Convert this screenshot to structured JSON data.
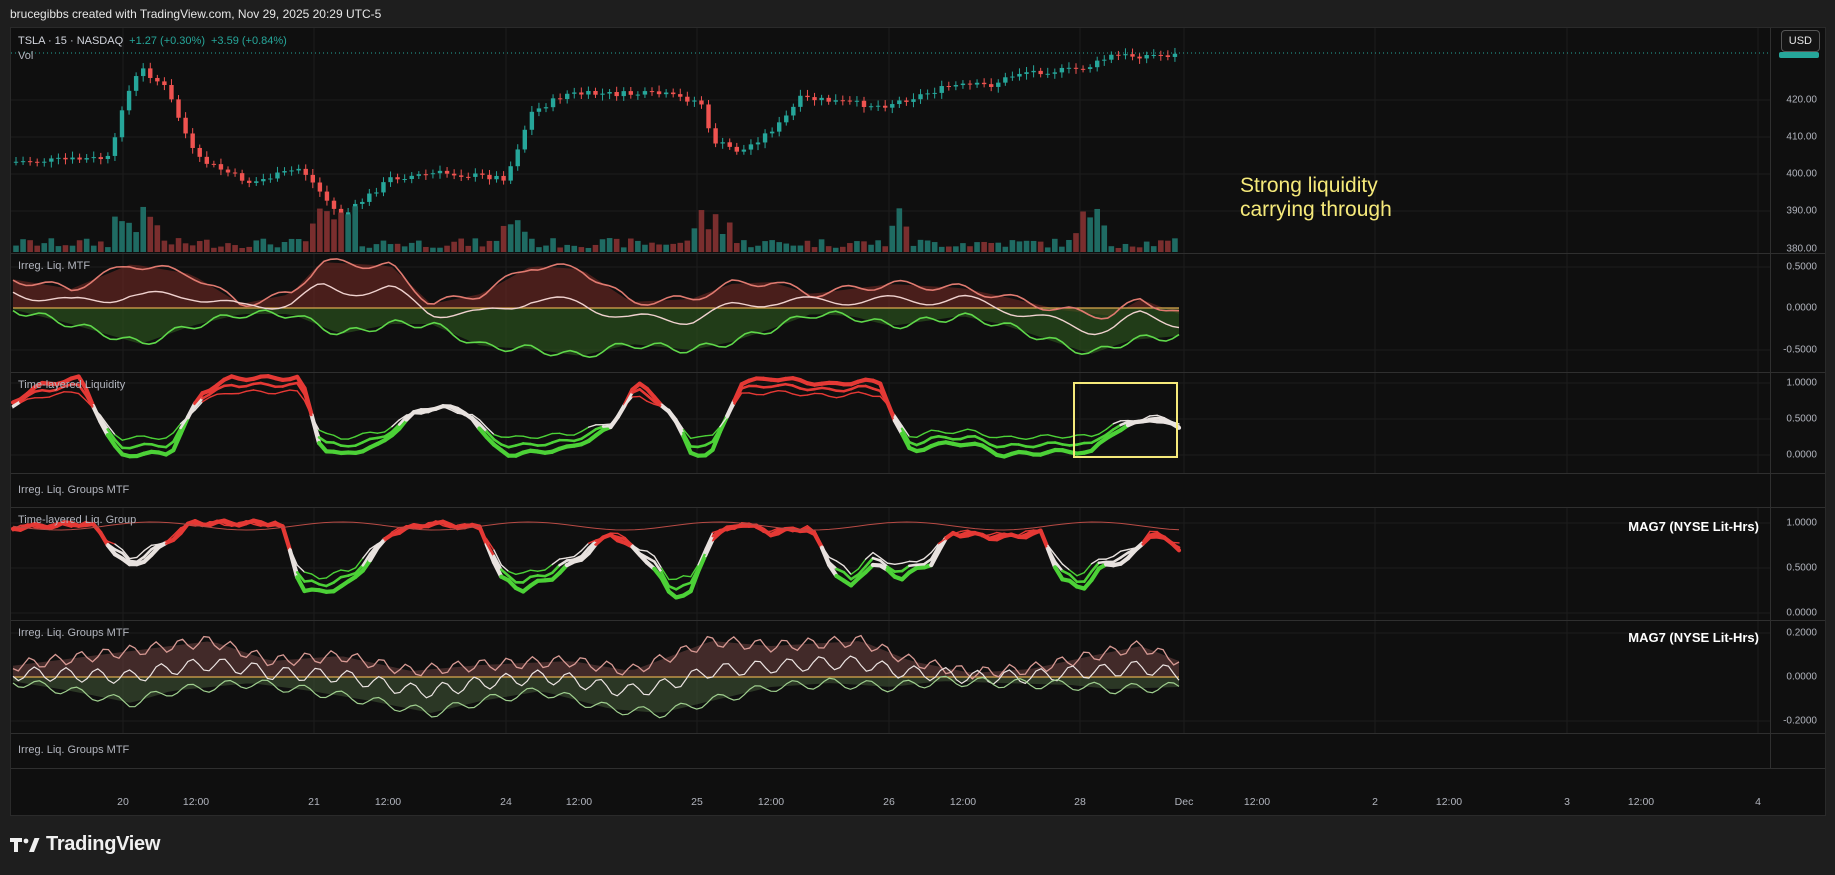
{
  "header": {
    "attribution": "brucegibbs created with TradingView.com, Nov 29, 2025 20:29 UTC-5"
  },
  "chart": {
    "symbol": "TSLA · 15 · NASDAQ",
    "change_abs": "+1.27 (+0.30%)",
    "change_ext": "+3.59 (+0.84%)",
    "volume_label": "Vol",
    "currency_button": "USD",
    "annotation_line1": "Strong liquidity",
    "annotation_line2": "carrying through",
    "price_ticks": [
      "420.00",
      "410.00",
      "400.00",
      "390.00",
      "380.00"
    ]
  },
  "panes": [
    {
      "title": "Irreg. Liq. MTF",
      "ticks": [
        "0.5000",
        "0.0000",
        "-0.5000"
      ]
    },
    {
      "title": "Time-layered Liquidity",
      "ticks": [
        "1.0000",
        "0.5000",
        "0.0000"
      ]
    },
    {
      "title": "Irreg. Liq. Groups MTF"
    },
    {
      "title": "Time-layered Liq. Group",
      "overlay": "MAG7 (NYSE Lit-Hrs)",
      "ticks": [
        "1.0000",
        "0.5000",
        "0.0000"
      ]
    },
    {
      "title": "Irreg. Liq. Groups MTF",
      "overlay": "MAG7 (NYSE Lit-Hrs)",
      "ticks": [
        "0.2000",
        "0.0000",
        "-0.2000"
      ]
    },
    {
      "title": "Irreg. Liq. Groups MTF"
    }
  ],
  "time_axis": [
    "20",
    "12:00",
    "21",
    "12:00",
    "24",
    "12:00",
    "25",
    "12:00",
    "26",
    "12:00",
    "28",
    "Dec",
    "12:00",
    "2",
    "12:00",
    "3",
    "12:00",
    "4"
  ],
  "brand": {
    "name": "TradingView"
  },
  "colors": {
    "up": "#26a69a",
    "down": "#ef5350",
    "highlight": "#f5e97a",
    "liq_green": "#4cd137",
    "liq_red": "#e53935"
  }
}
